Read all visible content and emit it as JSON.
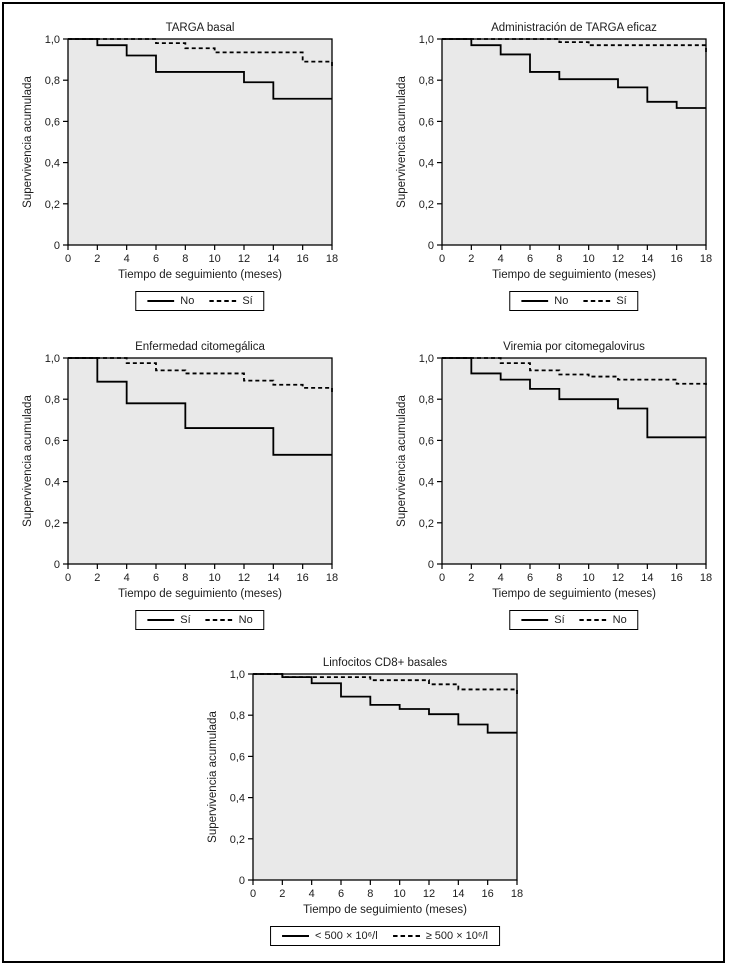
{
  "figure": {
    "background": "#ffffff",
    "frame_color": "#000000",
    "text_color": "#1c1c1c",
    "plot_background": "#e9e9e9",
    "line_color": "#000000"
  },
  "chart_data": [
    {
      "type": "line",
      "subtype": "kaplan_meier_step",
      "title": "TARGA basal",
      "xlabel": "Tiempo de seguimiento (meses)",
      "ylabel": "Supervivencia acumulada",
      "xlim": [
        0,
        18
      ],
      "ylim": [
        0,
        1
      ],
      "xticks": [
        0,
        2,
        4,
        6,
        8,
        10,
        12,
        14,
        16,
        18
      ],
      "yticks": [
        0,
        0.2,
        0.4,
        0.6,
        0.8,
        1.0
      ],
      "ytick_labels": [
        "0",
        "0,2",
        "0,4",
        "0,6",
        "0,8",
        "1,0"
      ],
      "grid": false,
      "legend_position": "bottom",
      "series": [
        {
          "name": "No",
          "line_style": "solid",
          "points": [
            [
              0,
              1.0
            ],
            [
              2,
              0.97
            ],
            [
              4,
              0.92
            ],
            [
              6,
              0.84
            ],
            [
              12,
              0.79
            ],
            [
              14,
              0.71
            ],
            [
              18,
              0.71
            ]
          ]
        },
        {
          "name": "Sí",
          "line_style": "dashed",
          "points": [
            [
              0,
              1.0
            ],
            [
              6,
              0.98
            ],
            [
              8,
              0.955
            ],
            [
              10,
              0.935
            ],
            [
              16,
              0.89
            ],
            [
              18,
              0.86
            ]
          ]
        }
      ]
    },
    {
      "type": "line",
      "subtype": "kaplan_meier_step",
      "title": "Administración de TARGA eficaz",
      "xlabel": "Tiempo de seguimiento (meses)",
      "ylabel": "Supervivencia acumulada",
      "xlim": [
        0,
        18
      ],
      "ylim": [
        0,
        1
      ],
      "xticks": [
        0,
        2,
        4,
        6,
        8,
        10,
        12,
        14,
        16,
        18
      ],
      "yticks": [
        0,
        0.2,
        0.4,
        0.6,
        0.8,
        1.0
      ],
      "ytick_labels": [
        "0",
        "0,2",
        "0,4",
        "0,6",
        "0,8",
        "1,0"
      ],
      "grid": false,
      "legend_position": "bottom",
      "series": [
        {
          "name": "No",
          "line_style": "solid",
          "points": [
            [
              0,
              1.0
            ],
            [
              2,
              0.97
            ],
            [
              4,
              0.925
            ],
            [
              6,
              0.84
            ],
            [
              8,
              0.805
            ],
            [
              12,
              0.765
            ],
            [
              14,
              0.695
            ],
            [
              16,
              0.665
            ],
            [
              18,
              0.665
            ]
          ]
        },
        {
          "name": "Sí",
          "line_style": "dashed",
          "points": [
            [
              0,
              1.0
            ],
            [
              8,
              0.985
            ],
            [
              10,
              0.97
            ],
            [
              18,
              0.925
            ]
          ]
        }
      ]
    },
    {
      "type": "line",
      "subtype": "kaplan_meier_step",
      "title": "Enfermedad citomegálica",
      "xlabel": "Tiempo de seguimiento (meses)",
      "ylabel": "Supervivencia acumulada",
      "xlim": [
        0,
        18
      ],
      "ylim": [
        0,
        1
      ],
      "xticks": [
        0,
        2,
        4,
        6,
        8,
        10,
        12,
        14,
        16,
        18
      ],
      "yticks": [
        0,
        0.2,
        0.4,
        0.6,
        0.8,
        1.0
      ],
      "ytick_labels": [
        "0",
        "0,2",
        "0,4",
        "0,6",
        "0,8",
        "1,0"
      ],
      "grid": false,
      "legend_position": "bottom",
      "series": [
        {
          "name": "Sí",
          "line_style": "solid",
          "points": [
            [
              0,
              1.0
            ],
            [
              2,
              0.885
            ],
            [
              4,
              0.78
            ],
            [
              8,
              0.66
            ],
            [
              14,
              0.53
            ],
            [
              18,
              0.53
            ]
          ]
        },
        {
          "name": "No",
          "line_style": "dashed",
          "points": [
            [
              0,
              1.0
            ],
            [
              4,
              0.975
            ],
            [
              6,
              0.94
            ],
            [
              8,
              0.925
            ],
            [
              12,
              0.89
            ],
            [
              14,
              0.87
            ],
            [
              16,
              0.855
            ],
            [
              18,
              0.83
            ]
          ]
        }
      ]
    },
    {
      "type": "line",
      "subtype": "kaplan_meier_step",
      "title": "Viremia por citomegalovirus",
      "xlabel": "Tiempo de seguimiento (meses)",
      "ylabel": "Supervivencia acumulada",
      "xlim": [
        0,
        18
      ],
      "ylim": [
        0,
        1
      ],
      "xticks": [
        0,
        2,
        4,
        6,
        8,
        10,
        12,
        14,
        16,
        18
      ],
      "yticks": [
        0,
        0.2,
        0.4,
        0.6,
        0.8,
        1.0
      ],
      "ytick_labels": [
        "0",
        "0,2",
        "0,4",
        "0,6",
        "0,8",
        "1,0"
      ],
      "grid": false,
      "legend_position": "bottom",
      "series": [
        {
          "name": "Sí",
          "line_style": "solid",
          "points": [
            [
              0,
              1.0
            ],
            [
              2,
              0.925
            ],
            [
              4,
              0.895
            ],
            [
              6,
              0.85
            ],
            [
              8,
              0.8
            ],
            [
              12,
              0.755
            ],
            [
              14,
              0.615
            ],
            [
              18,
              0.615
            ]
          ]
        },
        {
          "name": "No",
          "line_style": "dashed",
          "points": [
            [
              0,
              1.0
            ],
            [
              4,
              0.975
            ],
            [
              6,
              0.94
            ],
            [
              8,
              0.92
            ],
            [
              10,
              0.91
            ],
            [
              12,
              0.895
            ],
            [
              16,
              0.875
            ],
            [
              18,
              0.855
            ]
          ]
        }
      ]
    },
    {
      "type": "line",
      "subtype": "kaplan_meier_step",
      "title": "Linfocitos CD8+ basales",
      "xlabel": "Tiempo de seguimiento (meses)",
      "ylabel": "Supervivencia acumulada",
      "xlim": [
        0,
        18
      ],
      "ylim": [
        0,
        1
      ],
      "xticks": [
        0,
        2,
        4,
        6,
        8,
        10,
        12,
        14,
        16,
        18
      ],
      "yticks": [
        0,
        0.2,
        0.4,
        0.6,
        0.8,
        1.0
      ],
      "ytick_labels": [
        "0",
        "0,2",
        "0,4",
        "0,6",
        "0,8",
        "1,0"
      ],
      "grid": false,
      "legend_position": "bottom",
      "series": [
        {
          "name": "< 500 × 10⁶/l",
          "line_style": "solid",
          "points": [
            [
              0,
              1.0
            ],
            [
              2,
              0.985
            ],
            [
              4,
              0.955
            ],
            [
              6,
              0.89
            ],
            [
              8,
              0.85
            ],
            [
              10,
              0.83
            ],
            [
              12,
              0.805
            ],
            [
              14,
              0.755
            ],
            [
              16,
              0.715
            ],
            [
              18,
              0.715
            ]
          ]
        },
        {
          "name": "≥ 500 × 10⁶/l",
          "line_style": "dashed",
          "points": [
            [
              0,
              1.0
            ],
            [
              2,
              0.985
            ],
            [
              8,
              0.97
            ],
            [
              12,
              0.95
            ],
            [
              14,
              0.925
            ],
            [
              18,
              0.89
            ]
          ]
        }
      ]
    }
  ]
}
